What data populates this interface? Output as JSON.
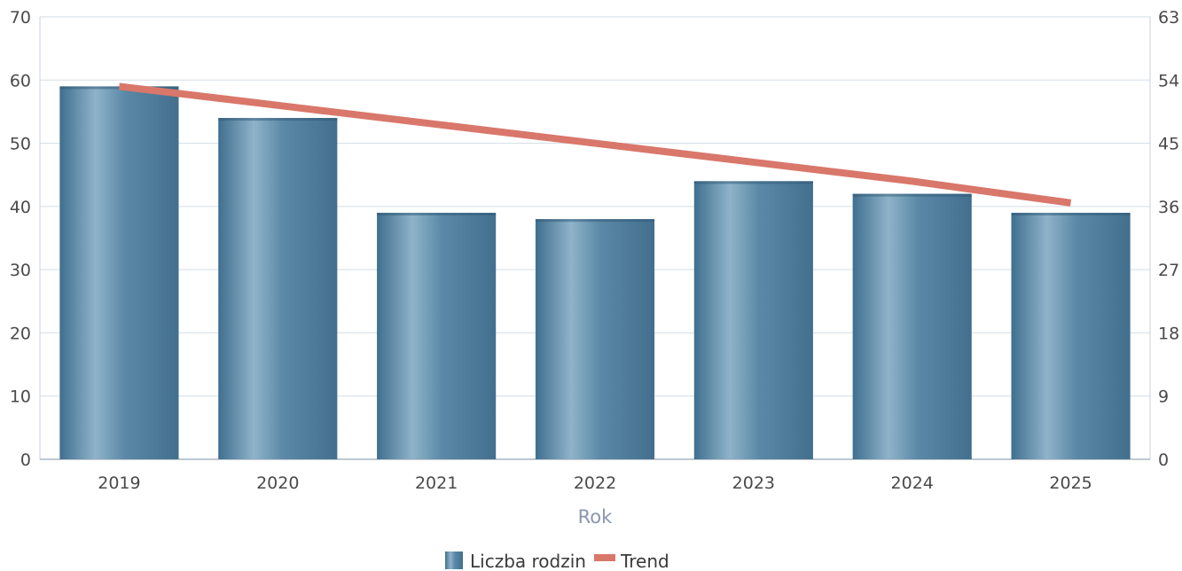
{
  "chart_data": {
    "type": "bar",
    "categories": [
      "2019",
      "2020",
      "2021",
      "2022",
      "2023",
      "2024",
      "2025"
    ],
    "series": [
      {
        "name": "Liczba rodzin",
        "type": "bar",
        "axis": "left",
        "values": [
          59,
          54,
          39,
          38,
          44,
          42,
          39
        ]
      },
      {
        "name": "Trend",
        "type": "line",
        "axis": "right",
        "values": [
          53.1,
          50.4,
          47.7,
          45.0,
          42.3,
          39.6,
          36.5
        ]
      }
    ],
    "xlabel": "Rok",
    "y_left": {
      "ylim": [
        0,
        70
      ],
      "ticks": [
        "0",
        "10",
        "20",
        "30",
        "40",
        "50",
        "60",
        "70"
      ]
    },
    "y_right": {
      "ylim": [
        0,
        63
      ],
      "ticks": [
        "0",
        "9",
        "18",
        "27",
        "36",
        "45",
        "54",
        "63"
      ]
    },
    "grid": true,
    "legend_position": "bottom-center",
    "colors": {
      "bar": "#4f7f9e",
      "bar_light": "#8fb3c9",
      "trend": "#d9776b",
      "grid": "#d3dde6"
    }
  }
}
